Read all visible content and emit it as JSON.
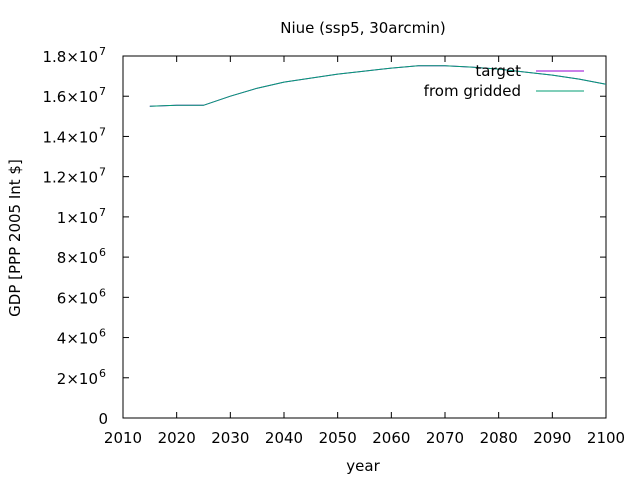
{
  "chart_data": {
    "type": "line",
    "title": "Niue (ssp5, 30arcmin)",
    "xlabel": "year",
    "ylabel": "GDP [PPP 2005 Int $]",
    "xlim": [
      2010,
      2100
    ],
    "ylim": [
      0,
      18000000
    ],
    "x_ticks": [
      2010,
      2020,
      2030,
      2040,
      2050,
      2060,
      2070,
      2080,
      2090,
      2100
    ],
    "y_ticks": [
      {
        "value": 0,
        "mantissa": "0",
        "exponent": ""
      },
      {
        "value": 2000000,
        "mantissa": "2×10",
        "exponent": "6"
      },
      {
        "value": 4000000,
        "mantissa": "4×10",
        "exponent": "6"
      },
      {
        "value": 6000000,
        "mantissa": "6×10",
        "exponent": "6"
      },
      {
        "value": 8000000,
        "mantissa": "8×10",
        "exponent": "6"
      },
      {
        "value": 10000000,
        "mantissa": "1×10",
        "exponent": "7"
      },
      {
        "value": 12000000,
        "mantissa": "1.2×10",
        "exponent": "7"
      },
      {
        "value": 14000000,
        "mantissa": "1.4×10",
        "exponent": "7"
      },
      {
        "value": 16000000,
        "mantissa": "1.6×10",
        "exponent": "7"
      },
      {
        "value": 18000000,
        "mantissa": "1.8×10",
        "exponent": "7"
      }
    ],
    "legend_position": "top-right",
    "grid": false,
    "x": [
      2015,
      2020,
      2025,
      2030,
      2035,
      2040,
      2045,
      2050,
      2055,
      2060,
      2065,
      2070,
      2075,
      2080,
      2085,
      2090,
      2095,
      2100
    ],
    "series": [
      {
        "name": "target",
        "color": "#9400d3",
        "values": [
          15500000,
          15550000,
          15550000,
          16000000,
          16400000,
          16700000,
          16900000,
          17100000,
          17250000,
          17400000,
          17520000,
          17520000,
          17450000,
          17350000,
          17200000,
          17050000,
          16850000,
          16600000
        ]
      },
      {
        "name": "from gridded",
        "color": "#009e73",
        "values": [
          15500000,
          15550000,
          15550000,
          16000000,
          16400000,
          16700000,
          16900000,
          17100000,
          17250000,
          17400000,
          17520000,
          17520000,
          17450000,
          17350000,
          17200000,
          17050000,
          16850000,
          16600000
        ]
      }
    ]
  }
}
